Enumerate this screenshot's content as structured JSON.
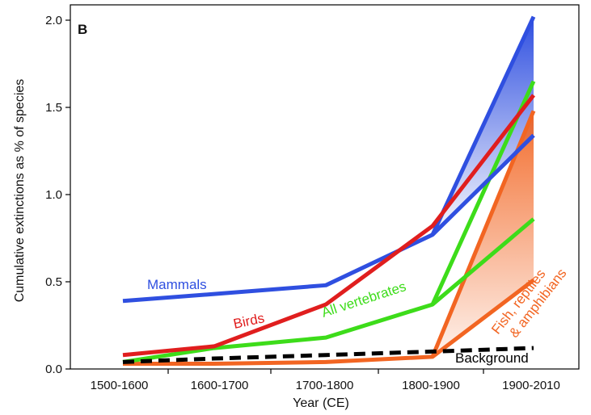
{
  "chart_data": {
    "type": "line",
    "panel_label": "B",
    "xlabel": "Year (CE)",
    "ylabel": "Cumulative extinctions as % of species",
    "categories": [
      "1500-1600",
      "1600-1700",
      "1700-1800",
      "1800-1900",
      "1900-2010"
    ],
    "ylim": [
      0,
      2.0
    ],
    "yticks": [
      "0.0",
      "0.5",
      "1.0",
      "1.5",
      "2.0"
    ],
    "grid": false,
    "legend": "inline labels",
    "series": [
      {
        "name": "Mammals",
        "color": "#2f4fe0",
        "values": [
          0.39,
          0.43,
          0.48,
          0.77,
          1.34
        ],
        "upper_bound": 2.02,
        "shaded_range": true
      },
      {
        "name": "Birds",
        "color": "#e01e1e",
        "values": [
          0.08,
          0.13,
          0.37,
          0.82,
          1.57
        ],
        "upper_bound": null,
        "shaded_range": false
      },
      {
        "name": "All vertebrates",
        "color": "#3ddc1a",
        "values": [
          0.04,
          0.12,
          0.18,
          0.37,
          0.86
        ],
        "upper_bound": 1.65,
        "shaded_range": false
      },
      {
        "name": "Fish, reptiles & amphibians",
        "color": "#f26522",
        "values": [
          0.03,
          0.03,
          0.04,
          0.07,
          0.51
        ],
        "upper_bound": 1.48,
        "shaded_range": true
      },
      {
        "name": "Background",
        "color": "#000000",
        "dashed": true,
        "values": [
          0.04,
          0.06,
          0.08,
          0.1,
          0.12
        ]
      }
    ]
  }
}
